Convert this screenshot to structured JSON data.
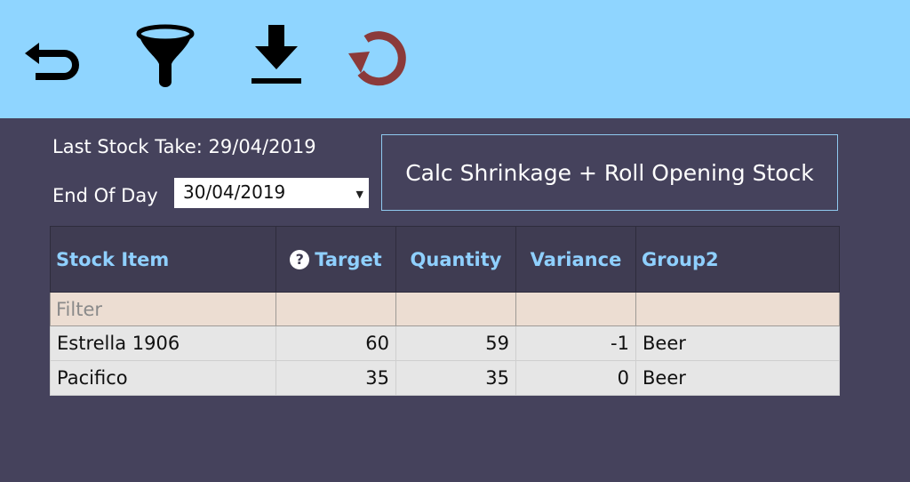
{
  "toolbar": {
    "icons": [
      "back-arrow-icon",
      "funnel-filter-icon",
      "download-icon",
      "reset-icon"
    ],
    "colors": {
      "background": "#8fd5ff",
      "icon": "#000000",
      "reset_icon": "#8b3a3a"
    }
  },
  "info": {
    "last_stock_take": "Last Stock Take: 29/04/2019",
    "end_of_day_label": "End Of Day",
    "end_of_day_value": "30/04/2019"
  },
  "calc_button": {
    "label": "Calc Shrinkage + Roll Opening Stock"
  },
  "table": {
    "headers": {
      "stock_item": "Stock Item",
      "target": "Target",
      "quantity": "Quantity",
      "variance": "Variance",
      "group2": "Group2"
    },
    "filter_placeholder": "Filter",
    "rows": [
      {
        "stock_item": "Estrella 1906",
        "target": "60",
        "quantity": "59",
        "variance": "-1",
        "group2": "Beer"
      },
      {
        "stock_item": "Pacifico",
        "target": "35",
        "quantity": "35",
        "variance": "0",
        "group2": "Beer"
      }
    ]
  },
  "colors": {
    "page_background": "#45425c",
    "header_text": "#8fd0ff",
    "negative_variance": "#ff1a1a",
    "filter_row": "#ecddd2"
  }
}
